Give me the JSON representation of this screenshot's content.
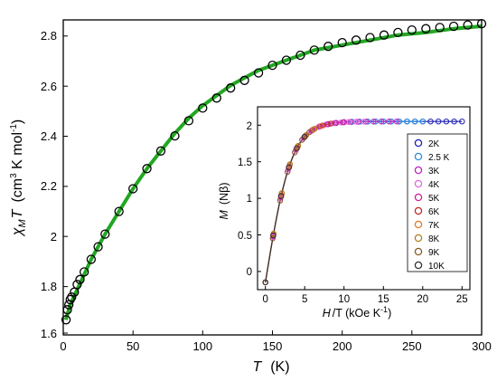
{
  "chart_data": [
    {
      "id": "main",
      "type": "scatter",
      "xlabel": {
        "sym": "T",
        "unit": "(K)"
      },
      "ylabel": {
        "sym": "χ",
        "sub": "M",
        "sym2": "T",
        "unit_pre": "(cm",
        "sup1": "3",
        "unit_mid": " K mol",
        "sup2": "-1",
        "unit_post": ")"
      },
      "xlim": [
        0,
        300
      ],
      "ylim": [
        1.6,
        2.85
      ],
      "xticks": [
        "0",
        "50",
        "100",
        "150",
        "200",
        "250",
        "300"
      ],
      "yticks": [
        "1.6",
        "1.8",
        "2",
        "2.2",
        "2.4",
        "2.6",
        "2.8"
      ],
      "grid": false,
      "series": [
        {
          "role": "experimental",
          "marker": "open-circle",
          "color": "#000000",
          "x": [
            2,
            3,
            4,
            5,
            6,
            8,
            10,
            12,
            15,
            20,
            25,
            30,
            40,
            50,
            60,
            70,
            80,
            90,
            100,
            110,
            120,
            130,
            140,
            150,
            160,
            170,
            180,
            190,
            200,
            210,
            220,
            230,
            240,
            250,
            260,
            270,
            280,
            290,
            300
          ],
          "y": [
            1.66,
            1.7,
            1.72,
            1.74,
            1.75,
            1.77,
            1.8,
            1.82,
            1.85,
            1.9,
            1.95,
            2.0,
            2.09,
            2.18,
            2.26,
            2.33,
            2.39,
            2.45,
            2.5,
            2.54,
            2.58,
            2.61,
            2.64,
            2.67,
            2.69,
            2.71,
            2.73,
            2.745,
            2.76,
            2.77,
            2.78,
            2.79,
            2.8,
            2.81,
            2.815,
            2.82,
            2.825,
            2.83,
            2.835
          ]
        },
        {
          "role": "fit",
          "marker": "line",
          "color": "#22a722",
          "x": [
            1.8,
            5,
            10,
            15,
            20,
            30,
            40,
            50,
            60,
            70,
            80,
            90,
            100,
            110,
            120,
            130,
            140,
            150,
            160,
            170,
            180,
            190,
            200,
            220,
            240,
            260,
            280,
            300
          ],
          "y": [
            1.66,
            1.72,
            1.78,
            1.84,
            1.9,
            2.0,
            2.09,
            2.18,
            2.26,
            2.33,
            2.4,
            2.46,
            2.51,
            2.55,
            2.59,
            2.62,
            2.65,
            2.67,
            2.69,
            2.71,
            2.73,
            2.74,
            2.75,
            2.77,
            2.79,
            2.8,
            2.815,
            2.825
          ]
        }
      ]
    },
    {
      "id": "inset",
      "type": "scatter",
      "xlabel": {
        "sym": "H",
        "unit": "/T (kOe K",
        "sup": "-1",
        "unit_post": ")"
      },
      "ylabel": {
        "sym": "M",
        "unit": "(Nβ)"
      },
      "xlim": [
        -1,
        26
      ],
      "ylim": [
        -0.1,
        2.4
      ],
      "xticks": [
        "0",
        "5",
        "10",
        "15",
        "20",
        "25"
      ],
      "yticks": [
        "0",
        "0.5",
        "1",
        "1.5",
        "2"
      ],
      "legend": {
        "position": "right",
        "entries": [
          "2K",
          "2.5 K",
          "3K",
          "4K",
          "5K",
          "6K",
          "7K",
          "8K",
          "9K",
          "10K"
        ]
      },
      "colors": [
        "#1f1fb4",
        "#2a8fe0",
        "#c020c0",
        "#e06ad8",
        "#d0209a",
        "#c02828",
        "#e07a28",
        "#b08020",
        "#8a5a28",
        "#303030"
      ],
      "m_sat": 2.2,
      "slope": 0.3,
      "h_over_t_max": [
        25,
        20,
        16.7,
        12.5,
        10,
        8.3,
        7.1,
        6.25,
        5.6,
        5.0
      ]
    }
  ]
}
